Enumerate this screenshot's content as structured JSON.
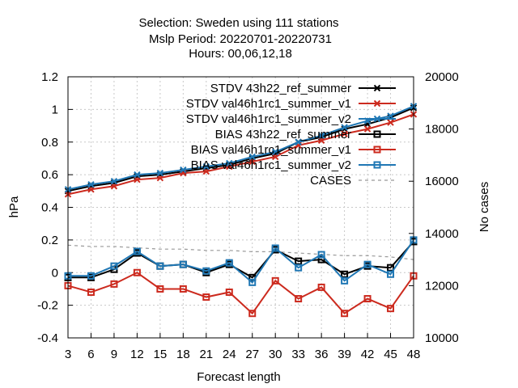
{
  "chart_data": {
    "type": "line",
    "title_lines": [
      "Selection: Sweden using   111 stations",
      "Mslp  Period: 20220701-20220731",
      "Hours: 00,06,12,18"
    ],
    "xlabel": "Forecast length",
    "ylabel": "hPa",
    "y2label": "No cases",
    "x": [
      3,
      6,
      9,
      12,
      15,
      18,
      21,
      24,
      27,
      30,
      33,
      36,
      39,
      42,
      45,
      48
    ],
    "xticks": [
      "3",
      "6",
      "9",
      "12",
      "15",
      "18",
      "21",
      "24",
      "27",
      "30",
      "33",
      "36",
      "39",
      "42",
      "45",
      "48"
    ],
    "ylim": [
      -0.4,
      1.2
    ],
    "yticks": [
      "-0.4",
      "-0.2",
      "0",
      "0.2",
      "0.4",
      "0.6",
      "0.8",
      "1",
      "1.2"
    ],
    "y2lim": [
      10000,
      20000
    ],
    "y2ticks": [
      "10000",
      "12000",
      "14000",
      "16000",
      "18000",
      "20000"
    ],
    "legend_position": "top-right",
    "series": [
      {
        "name": "STDV 43h22_ref_summer",
        "color": "#000000",
        "marker": "x",
        "values": [
          0.5,
          0.53,
          0.55,
          0.59,
          0.6,
          0.62,
          0.64,
          0.66,
          0.7,
          0.73,
          0.8,
          0.83,
          0.88,
          0.91,
          0.95,
          1.01
        ]
      },
      {
        "name": "STDV val46h1rc1_summer_v1",
        "color": "#cc2a1e",
        "marker": "x",
        "values": [
          0.48,
          0.51,
          0.53,
          0.57,
          0.58,
          0.61,
          0.62,
          0.65,
          0.68,
          0.71,
          0.78,
          0.81,
          0.85,
          0.88,
          0.92,
          0.97
        ]
      },
      {
        "name": "STDV val46h1rc1_summer_v2",
        "color": "#1f77b4",
        "marker": "x",
        "values": [
          0.51,
          0.54,
          0.56,
          0.6,
          0.61,
          0.63,
          0.65,
          0.67,
          0.71,
          0.74,
          0.8,
          0.84,
          0.89,
          0.93,
          0.96,
          1.02
        ]
      },
      {
        "name": "BIAS 43h22_ref_summer",
        "color": "#000000",
        "marker": "square",
        "values": [
          -0.03,
          -0.03,
          0.02,
          0.12,
          0.04,
          0.05,
          0.0,
          0.05,
          -0.03,
          0.14,
          0.07,
          0.08,
          -0.01,
          0.04,
          0.03,
          0.19
        ]
      },
      {
        "name": "BIAS val46h1rc1_summer_v1",
        "color": "#cc2a1e",
        "marker": "square",
        "values": [
          -0.08,
          -0.12,
          -0.07,
          0.0,
          -0.1,
          -0.1,
          -0.15,
          -0.12,
          -0.25,
          -0.05,
          -0.16,
          -0.09,
          -0.25,
          -0.16,
          -0.22,
          -0.02
        ]
      },
      {
        "name": "BIAS val46h1rc1_summer_v2",
        "color": "#1f77b4",
        "marker": "square",
        "values": [
          -0.02,
          -0.02,
          0.04,
          0.13,
          0.04,
          0.05,
          0.01,
          0.06,
          -0.06,
          0.15,
          0.03,
          0.11,
          -0.05,
          0.05,
          -0.01,
          0.2
        ]
      },
      {
        "name": "CASES",
        "color": "#999999",
        "marker": "none",
        "dashed": true,
        "axis": "y2",
        "values": [
          13550,
          13500,
          13500,
          13450,
          13400,
          13400,
          13350,
          13350,
          13300,
          13300,
          13250,
          13200,
          13150,
          13150,
          13100,
          13000
        ]
      }
    ],
    "legend_labels": [
      "STDV 43h22_ref_summer",
      "STDV val46h1rc1_summer_v1",
      "STDV val46h1rc1_summer_v2",
      "BIAS 43h22_ref_summer",
      "BIAS val46h1rc1_summer_v1",
      "BIAS val46h1rc1_summer_v2",
      "CASES"
    ]
  }
}
